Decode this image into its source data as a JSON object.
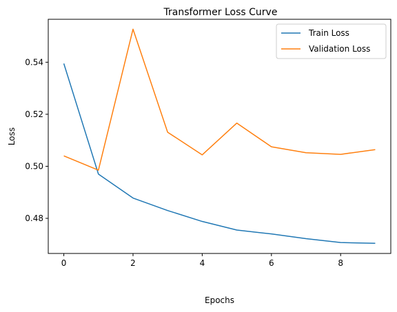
{
  "chart_data": {
    "type": "line",
    "title": "Transformer Loss Curve",
    "xlabel": "Epochs",
    "ylabel": "Loss",
    "x": [
      0,
      1,
      2,
      3,
      4,
      5,
      6,
      7,
      8,
      9
    ],
    "xlim": [
      -0.45,
      9.45
    ],
    "ylim": [
      0.4665,
      0.5565
    ],
    "xticks": [
      0,
      2,
      4,
      6,
      8
    ],
    "yticks": [
      0.48,
      0.5,
      0.52,
      0.54
    ],
    "ytick_labels": [
      "0.48",
      "0.50",
      "0.52",
      "0.54"
    ],
    "grid": false,
    "legend_position": "top-right",
    "series": [
      {
        "name": "Train Loss",
        "color": "#1f77b4",
        "values": [
          0.5395,
          0.497,
          0.4878,
          0.483,
          0.4788,
          0.4755,
          0.474,
          0.4722,
          0.4707,
          0.4704
        ]
      },
      {
        "name": "Validation Loss",
        "color": "#ff7f0e",
        "values": [
          0.504,
          0.4985,
          0.5527,
          0.5131,
          0.5044,
          0.5166,
          0.5075,
          0.5052,
          0.5046,
          0.5064
        ]
      }
    ]
  }
}
